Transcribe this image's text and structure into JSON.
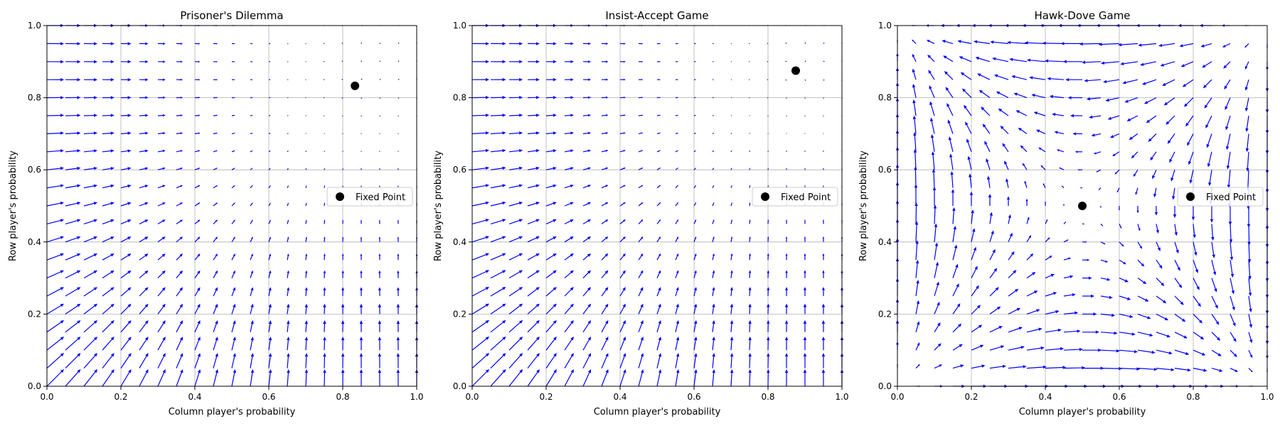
{
  "chart_data": [
    {
      "type": "quiver",
      "title": "Prisoner's Dilemma",
      "xlabel": "Column player's probability",
      "ylabel": "Row player's probability",
      "xlim": [
        0,
        1
      ],
      "ylim": [
        0,
        1
      ],
      "xticks": [
        "0.0",
        "0.2",
        "0.4",
        "0.6",
        "0.8",
        "1.0"
      ],
      "yticks": [
        "0.0",
        "0.2",
        "0.4",
        "0.6",
        "0.8",
        "1.0"
      ],
      "grid": true,
      "legend": {
        "label": "Fixed Point",
        "position": "center-right"
      },
      "fixed_point": {
        "x": 0.833,
        "y": 0.833
      },
      "vector_color": "#0000ff",
      "grid_steps": 20
    },
    {
      "type": "quiver",
      "title": "Insist-Accept Game",
      "xlabel": "Column player's probability",
      "ylabel": "Row player's probability",
      "xlim": [
        0,
        1
      ],
      "ylim": [
        0,
        1
      ],
      "xticks": [
        "0.0",
        "0.2",
        "0.4",
        "0.6",
        "0.8",
        "1.0"
      ],
      "yticks": [
        "0.0",
        "0.2",
        "0.4",
        "0.6",
        "0.8",
        "1.0"
      ],
      "grid": true,
      "legend": {
        "label": "Fixed Point",
        "position": "center-right"
      },
      "fixed_point": {
        "x": 0.875,
        "y": 0.875
      },
      "vector_color": "#0000ff",
      "grid_steps": 20
    },
    {
      "type": "quiver",
      "title": "Hawk-Dove Game",
      "xlabel": "Column player's probability",
      "ylabel": "Row player's probability",
      "xlim": [
        0,
        1
      ],
      "ylim": [
        0,
        1
      ],
      "xticks": [
        "0.0",
        "0.2",
        "0.4",
        "0.6",
        "0.8",
        "1.0"
      ],
      "yticks": [
        "0.0",
        "0.2",
        "0.4",
        "0.6",
        "0.8",
        "1.0"
      ],
      "grid": true,
      "legend": {
        "label": "Fixed Point",
        "position": "center-right"
      },
      "fixed_point": {
        "x": 0.5,
        "y": 0.5
      },
      "vector_color": "#0000ff",
      "grid_steps": 20
    }
  ]
}
